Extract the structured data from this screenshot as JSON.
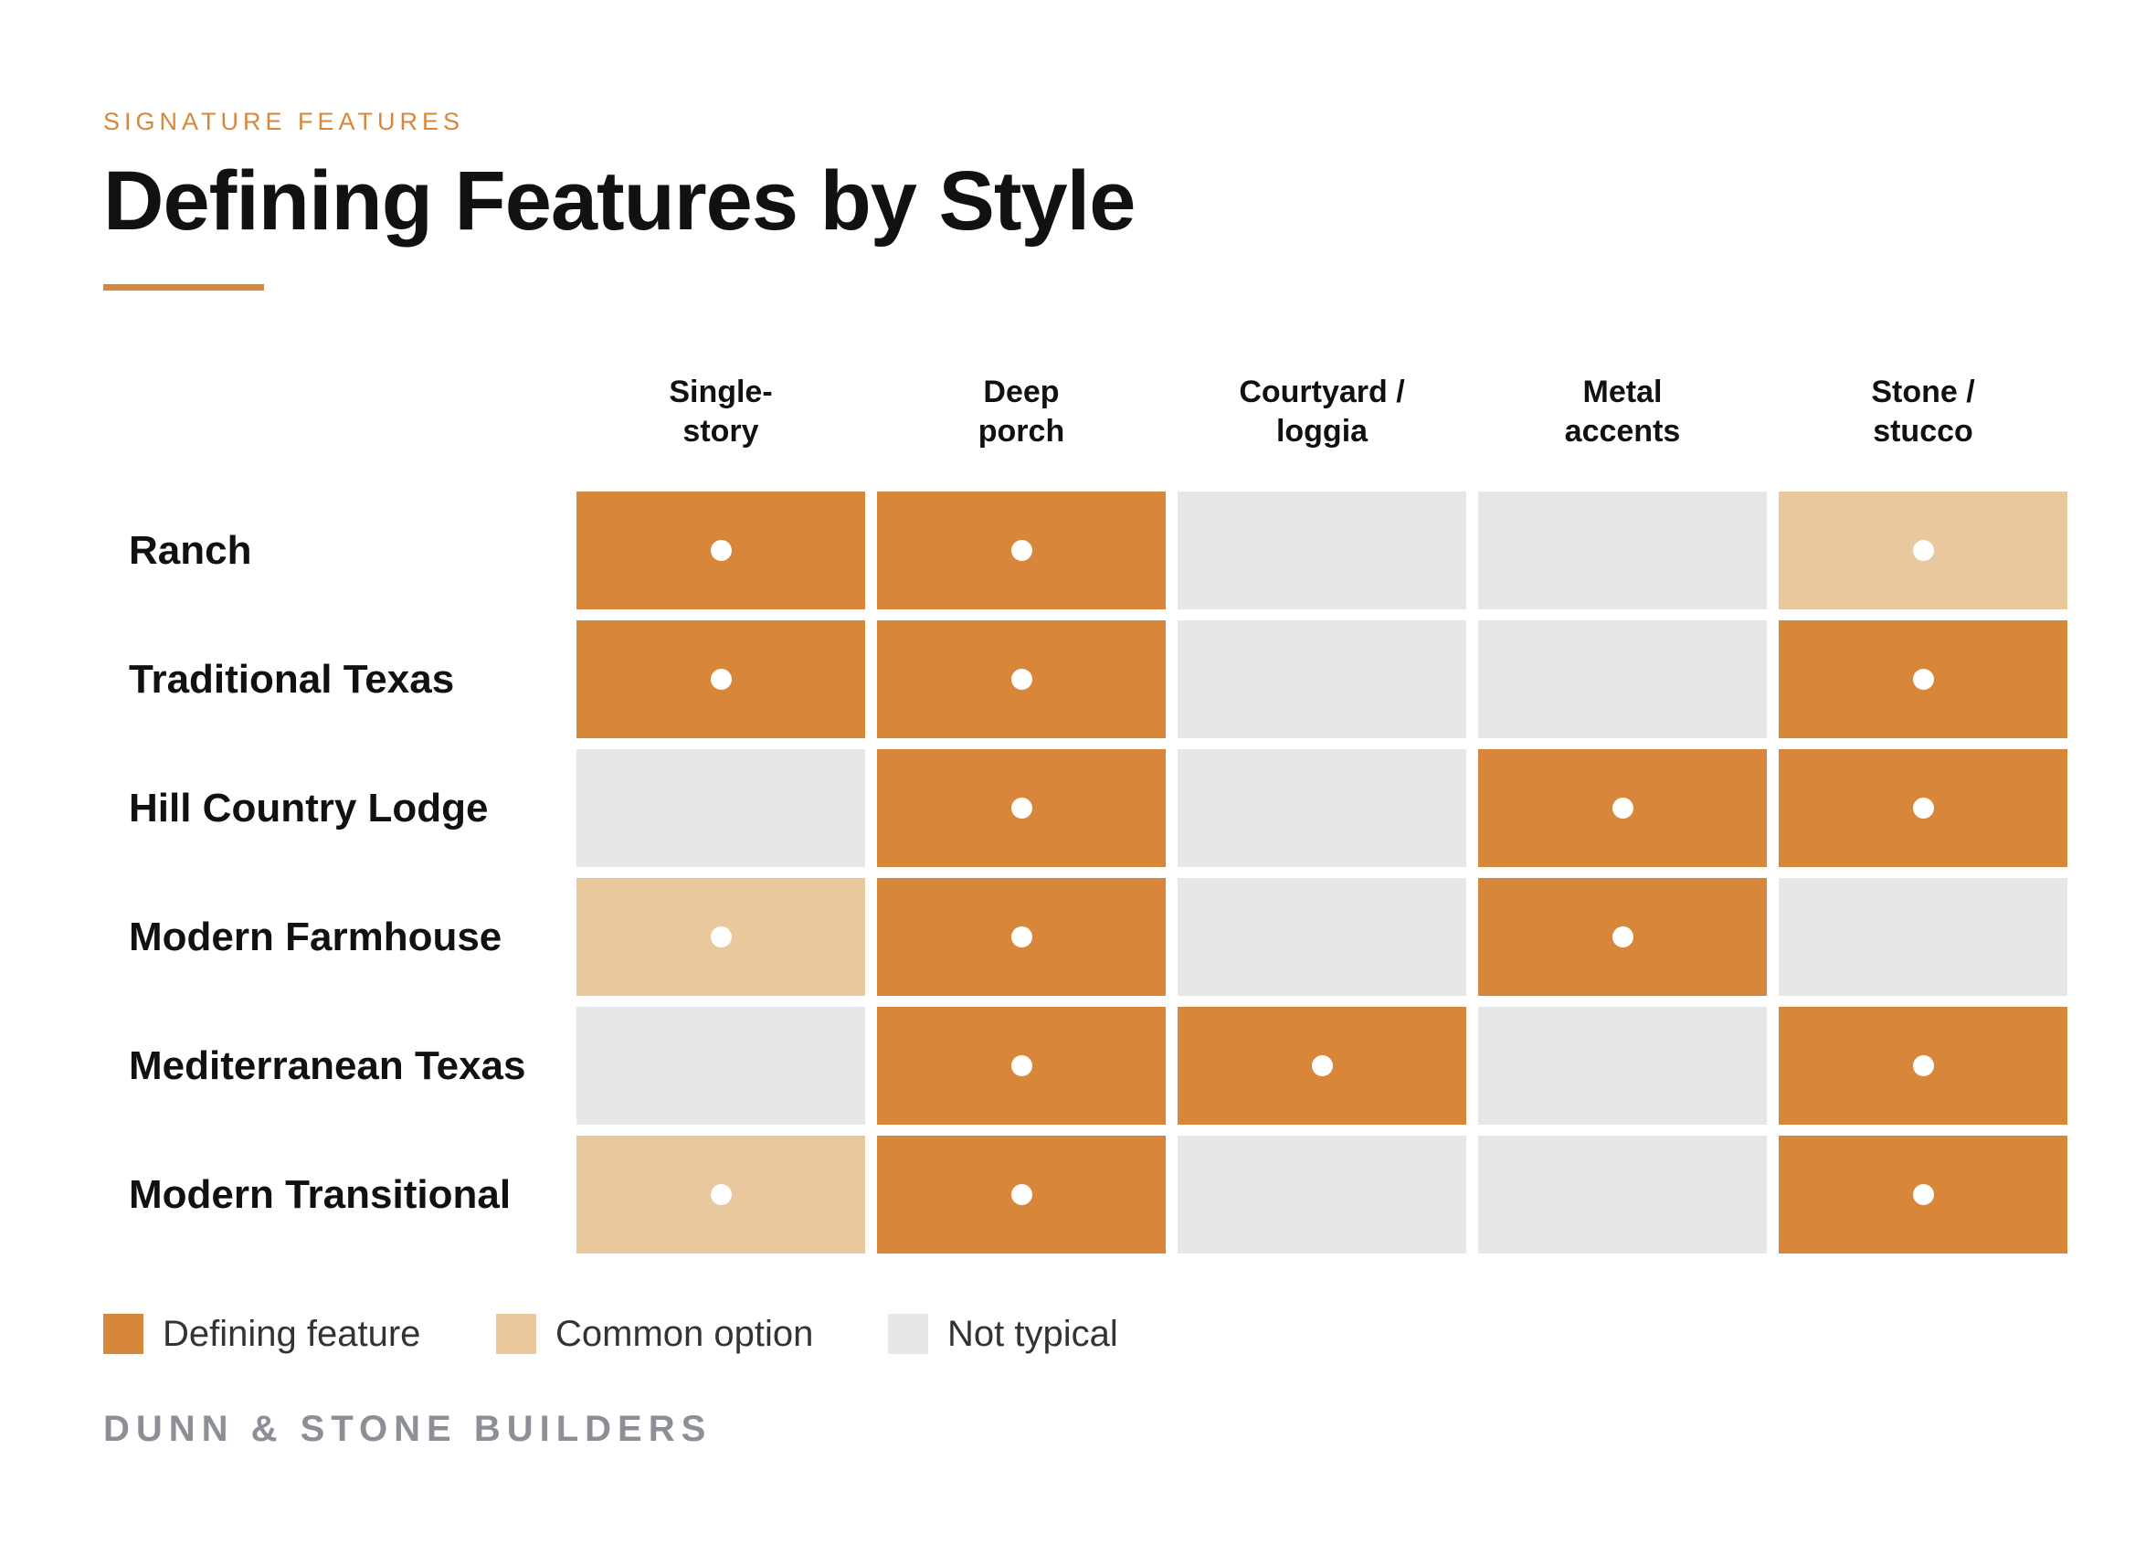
{
  "eyebrow": "SIGNATURE FEATURES",
  "title": "Defining Features by Style",
  "brand": "DUNN & STONE BUILDERS",
  "colors": {
    "defining": "#d8873a",
    "common": "#e8c89c",
    "not_typical": "#e6e7e8",
    "accent": "#d8873a"
  },
  "chart_data": {
    "type": "heatmap",
    "columns": [
      {
        "line1": "Single-",
        "line2": "story"
      },
      {
        "line1": "Deep",
        "line2": "porch"
      },
      {
        "line1": "Courtyard /",
        "line2": "loggia"
      },
      {
        "line1": "Metal",
        "line2": "accents"
      },
      {
        "line1": "Stone /",
        "line2": "stucco"
      }
    ],
    "rows": [
      {
        "label": "Ranch",
        "values": [
          "defining",
          "defining",
          "not_typical",
          "not_typical",
          "common"
        ]
      },
      {
        "label": "Traditional Texas",
        "values": [
          "defining",
          "defining",
          "not_typical",
          "not_typical",
          "defining"
        ]
      },
      {
        "label": "Hill Country Lodge",
        "values": [
          "not_typical",
          "defining",
          "not_typical",
          "defining",
          "defining"
        ]
      },
      {
        "label": "Modern Farmhouse",
        "values": [
          "common",
          "defining",
          "not_typical",
          "defining",
          "not_typical"
        ]
      },
      {
        "label": "Mediterranean Texas",
        "values": [
          "not_typical",
          "defining",
          "defining",
          "not_typical",
          "defining"
        ]
      },
      {
        "label": "Modern Transitional",
        "values": [
          "common",
          "defining",
          "not_typical",
          "not_typical",
          "defining"
        ]
      }
    ],
    "legend": [
      {
        "key": "defining",
        "label": "Defining feature"
      },
      {
        "key": "common",
        "label": "Common option"
      },
      {
        "key": "not_typical",
        "label": "Not typical"
      }
    ]
  }
}
